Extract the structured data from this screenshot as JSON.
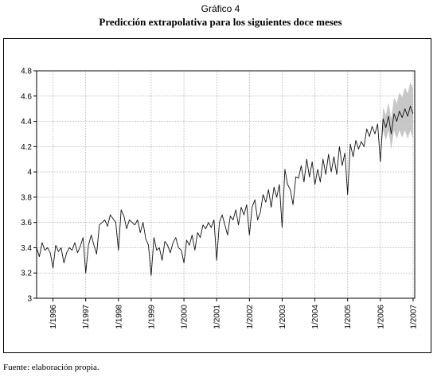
{
  "figure": {
    "label": "Gráfico 4",
    "title": "Predicción extrapolativa para los siguientes doce meses",
    "source": "Fuente: elaboración propia."
  },
  "chart_data": {
    "type": "line",
    "title": "Predicción extrapolativa para los siguientes doce meses",
    "xlabel": "",
    "ylabel": "",
    "ylim": [
      3.0,
      4.8
    ],
    "y_ticks": [
      3,
      3.2,
      3.4,
      3.6,
      3.8,
      4,
      4.2,
      4.4,
      4.6,
      4.8
    ],
    "y_tick_labels": [
      "3",
      "3.2",
      "3.4",
      "3.6",
      "3.8",
      "4",
      "4.2",
      "4.4",
      "4.6",
      "4.8"
    ],
    "x_range": [
      1995.5,
      2007.05
    ],
    "x_ticks": [
      1996,
      1997,
      1998,
      1999,
      2000,
      2001,
      2002,
      2003,
      2004,
      2005,
      2006,
      2007
    ],
    "x_tick_labels": [
      "1/1996",
      "1/1997",
      "1/1998",
      "1/1999",
      "1/2000",
      "1/2001",
      "1/2002",
      "1/2003",
      "1/2004",
      "1/2005",
      "1/2006",
      "1/2007"
    ],
    "grid": true,
    "legend": "none",
    "colors": {
      "line": "#111111",
      "band": "#bdbdbd",
      "grid": "#9a9a9a"
    },
    "series": [
      {
        "kind": "observed",
        "x": [
          1995.5,
          1995.583,
          1995.667,
          1995.75,
          1995.833,
          1995.917,
          1996.0,
          1996.083,
          1996.167,
          1996.25,
          1996.333,
          1996.417,
          1996.5,
          1996.583,
          1996.667,
          1996.75,
          1996.833,
          1996.917,
          1997.0,
          1997.083,
          1997.167,
          1997.25,
          1997.333,
          1997.417,
          1997.5,
          1997.583,
          1997.667,
          1997.75,
          1997.833,
          1997.917,
          1998.0,
          1998.083,
          1998.167,
          1998.25,
          1998.333,
          1998.417,
          1998.5,
          1998.583,
          1998.667,
          1998.75,
          1998.833,
          1998.917,
          1999.0,
          1999.083,
          1999.167,
          1999.25,
          1999.333,
          1999.417,
          1999.5,
          1999.583,
          1999.667,
          1999.75,
          1999.833,
          1999.917,
          2000.0,
          2000.083,
          2000.167,
          2000.25,
          2000.333,
          2000.417,
          2000.5,
          2000.583,
          2000.667,
          2000.75,
          2000.833,
          2000.917,
          2001.0,
          2001.083,
          2001.167,
          2001.25,
          2001.333,
          2001.417,
          2001.5,
          2001.583,
          2001.667,
          2001.75,
          2001.833,
          2001.917,
          2002.0,
          2002.083,
          2002.167,
          2002.25,
          2002.333,
          2002.417,
          2002.5,
          2002.583,
          2002.667,
          2002.75,
          2002.833,
          2002.917,
          2003.0,
          2003.083,
          2003.167,
          2003.25,
          2003.333,
          2003.417,
          2003.5,
          2003.583,
          2003.667,
          2003.75,
          2003.833,
          2003.917,
          2004.0,
          2004.083,
          2004.167,
          2004.25,
          2004.333,
          2004.417,
          2004.5,
          2004.583,
          2004.667,
          2004.75,
          2004.833,
          2004.917,
          2005.0,
          2005.083,
          2005.167,
          2005.25,
          2005.333,
          2005.417,
          2005.5,
          2005.583,
          2005.667,
          2005.75,
          2005.833,
          2005.917,
          2006.0
        ],
        "y": [
          3.4,
          3.33,
          3.44,
          3.38,
          3.4,
          3.36,
          3.24,
          3.42,
          3.37,
          3.4,
          3.28,
          3.36,
          3.4,
          3.38,
          3.44,
          3.36,
          3.41,
          3.48,
          3.2,
          3.42,
          3.5,
          3.42,
          3.35,
          3.58,
          3.6,
          3.62,
          3.57,
          3.66,
          3.63,
          3.6,
          3.38,
          3.7,
          3.65,
          3.55,
          3.62,
          3.6,
          3.58,
          3.62,
          3.52,
          3.6,
          3.47,
          3.42,
          3.18,
          3.48,
          3.38,
          3.4,
          3.3,
          3.45,
          3.42,
          3.36,
          3.44,
          3.48,
          3.4,
          3.38,
          3.28,
          3.46,
          3.42,
          3.5,
          3.38,
          3.52,
          3.48,
          3.58,
          3.55,
          3.6,
          3.56,
          3.62,
          3.3,
          3.6,
          3.66,
          3.58,
          3.5,
          3.65,
          3.62,
          3.7,
          3.58,
          3.72,
          3.66,
          3.74,
          3.5,
          3.72,
          3.78,
          3.62,
          3.68,
          3.82,
          3.76,
          3.86,
          3.72,
          3.88,
          3.8,
          3.9,
          3.56,
          4.02,
          3.9,
          3.86,
          3.74,
          3.96,
          3.95,
          4.05,
          3.92,
          4.1,
          3.96,
          4.08,
          3.9,
          4.02,
          3.92,
          4.1,
          3.98,
          4.14,
          4.0,
          4.12,
          3.98,
          4.2,
          4.05,
          4.15,
          3.82,
          4.22,
          4.12,
          4.25,
          4.18,
          4.24,
          4.2,
          4.34,
          4.28,
          4.36,
          4.3,
          4.38,
          4.08
        ]
      },
      {
        "kind": "forecast",
        "x": [
          2006.0,
          2006.083,
          2006.167,
          2006.25,
          2006.333,
          2006.417,
          2006.5,
          2006.583,
          2006.667,
          2006.75,
          2006.833,
          2006.917,
          2007.0
        ],
        "y": [
          4.08,
          4.42,
          4.35,
          4.44,
          4.3,
          4.46,
          4.4,
          4.48,
          4.43,
          4.5,
          4.44,
          4.52,
          4.46
        ],
        "lower": [
          4.08,
          4.33,
          4.25,
          4.33,
          4.18,
          4.33,
          4.26,
          4.33,
          4.27,
          4.33,
          4.26,
          4.33,
          4.26
        ],
        "upper": [
          4.08,
          4.51,
          4.45,
          4.55,
          4.42,
          4.59,
          4.54,
          4.63,
          4.59,
          4.67,
          4.62,
          4.71,
          4.66
        ]
      }
    ]
  }
}
